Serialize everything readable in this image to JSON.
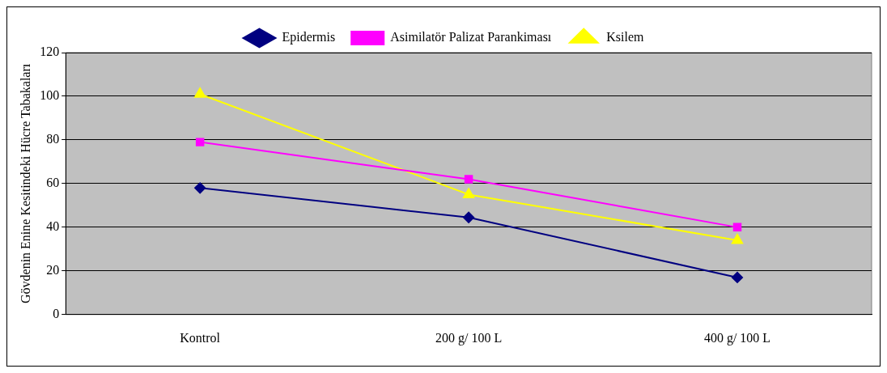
{
  "chart_data": {
    "type": "line",
    "ylabel": "Gövdenin Enine Kesitindeki Hücre Tabakaları",
    "categories": [
      "Kontrol",
      "200 g/ 100 L",
      "400 g/ 100 L"
    ],
    "series": [
      {
        "name": "Epidermis",
        "color": "#000080",
        "values": [
          58,
          44.5,
          17
        ],
        "marker": "diamond"
      },
      {
        "name": "Asimilatör Palizat Parankiması",
        "color": "#ff00ff",
        "values": [
          79,
          62,
          40
        ],
        "marker": "square"
      },
      {
        "name": "Ksilem",
        "color": "#ffff00",
        "values": [
          101,
          55,
          34
        ],
        "marker": "triangle"
      }
    ],
    "ylim": [
      0,
      120
    ],
    "yticks": [
      0,
      20,
      40,
      60,
      80,
      100,
      120
    ],
    "grid": "y",
    "legend": "top",
    "line_style": "solid"
  }
}
